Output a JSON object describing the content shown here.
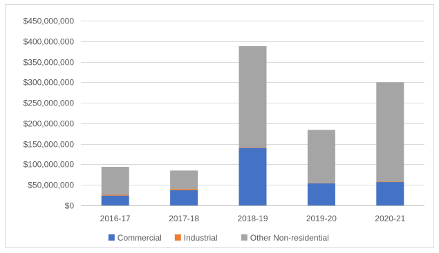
{
  "chart_data": {
    "type": "bar",
    "stacked": true,
    "categories": [
      "2016-17",
      "2017-18",
      "2018-19",
      "2019-20",
      "2020-21"
    ],
    "series": [
      {
        "name": "Commercial",
        "color": "#4472c4",
        "values": [
          24000000,
          37000000,
          140000000,
          54000000,
          57000000
        ]
      },
      {
        "name": "Industrial",
        "color": "#ed7d31",
        "values": [
          2000000,
          3000000,
          1000000,
          1000000,
          1000000
        ]
      },
      {
        "name": "Other Non-residential",
        "color": "#a5a5a5",
        "values": [
          68000000,
          45000000,
          247000000,
          129000000,
          242000000
        ]
      }
    ],
    "ylim": [
      0,
      450000000
    ],
    "y_ticks": [
      0,
      50000000,
      100000000,
      150000000,
      200000000,
      250000000,
      300000000,
      350000000,
      400000000,
      450000000
    ],
    "y_tick_labels": [
      "$0",
      "$50,000,000",
      "$100,000,000",
      "$150,000,000",
      "$200,000,000",
      "$250,000,000",
      "$300,000,000",
      "$350,000,000",
      "$400,000,000",
      "$450,000,000"
    ],
    "grid": true,
    "legend_position": "bottom",
    "title": "",
    "xlabel": "",
    "ylabel": ""
  }
}
